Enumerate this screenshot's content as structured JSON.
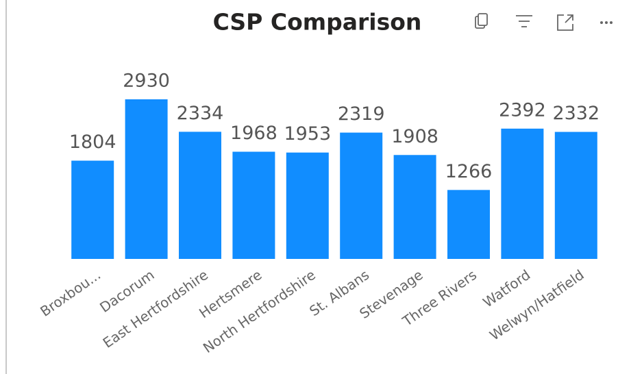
{
  "chart_data": {
    "type": "bar",
    "title": "CSP Comparison",
    "categories": [
      "Broxbou...",
      "Dacorum",
      "East Hertfordshire",
      "Hertsmere",
      "North Hertfordshire",
      "St. Albans",
      "Stevenage",
      "Three Rivers",
      "Watford",
      "Welwyn/Hatfield"
    ],
    "values": [
      1804,
      2930,
      2334,
      1968,
      1953,
      2319,
      1908,
      1266,
      2392,
      2332
    ],
    "color": "#118dff"
  }
}
